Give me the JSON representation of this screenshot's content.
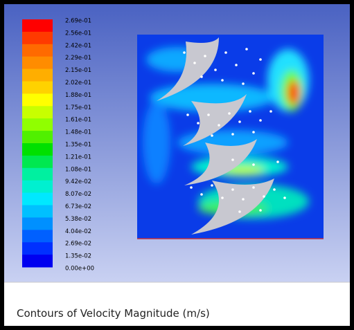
{
  "legend": {
    "labels": [
      "2.69e-01",
      "2.56e-01",
      "2.42e-01",
      "2.29e-01",
      "2.15e-01",
      "2.02e-01",
      "1.88e-01",
      "1.75e-01",
      "1.61e-01",
      "1.48e-01",
      "1.35e-01",
      "1.21e-01",
      "1.08e-01",
      "9.42e-02",
      "8.07e-02",
      "6.73e-02",
      "5.38e-02",
      "4.04e-02",
      "2.69e-02",
      "1.35e-02",
      "0.00e+00"
    ],
    "colors": [
      "#ff0000",
      "#ff3a00",
      "#ff6a00",
      "#ff8c00",
      "#ffae00",
      "#ffd200",
      "#ffff00",
      "#c8ff00",
      "#90ff00",
      "#50f000",
      "#00e000",
      "#00e850",
      "#00f0a0",
      "#00f0d0",
      "#00e8ff",
      "#00c0ff",
      "#0090ff",
      "#0060ff",
      "#0030ff",
      "#0000f0"
    ]
  },
  "caption": "Contours of Velocity Magnitude (m/s)"
}
